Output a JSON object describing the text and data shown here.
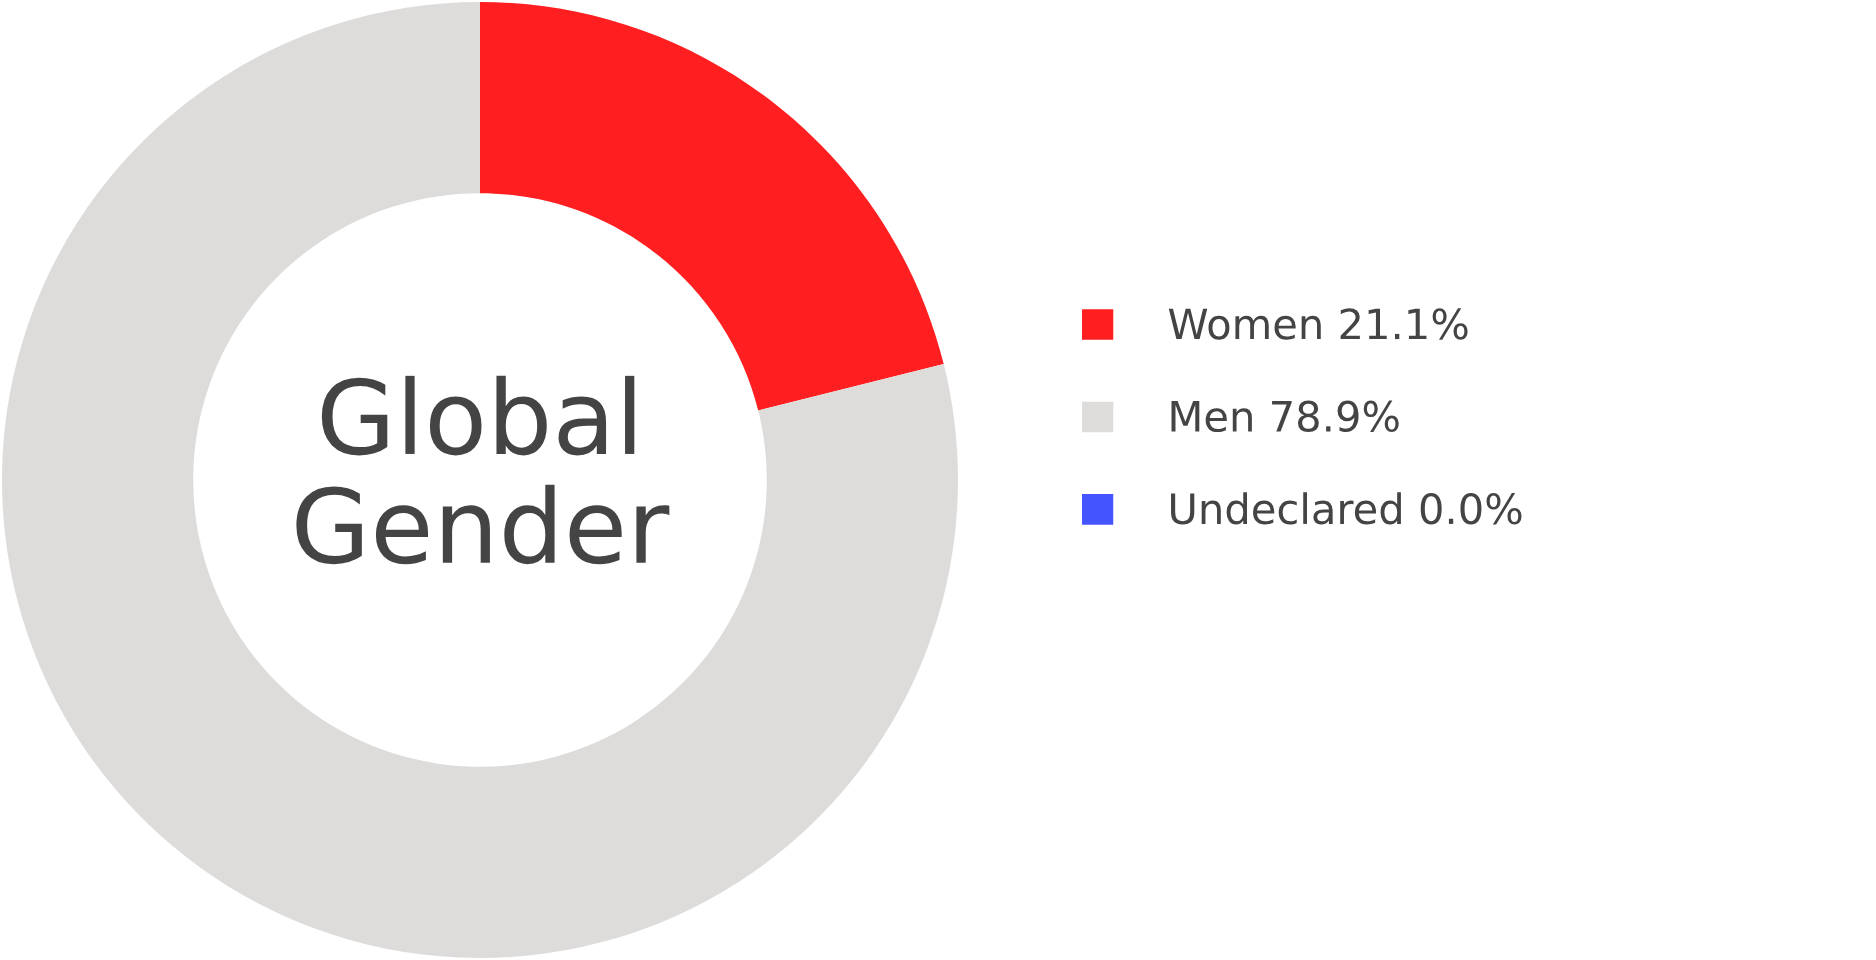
{
  "chart_data": {
    "type": "donut",
    "title": "Global Gender",
    "categories": [
      "Women 21.1%",
      "Men 78.9%",
      "Undeclared 0.0%"
    ],
    "values": [
      21.1,
      78.9,
      0.0
    ],
    "colors": [
      "#ff1e20",
      "#dedbdb",
      "#4455ff"
    ],
    "legend": "right"
  }
}
